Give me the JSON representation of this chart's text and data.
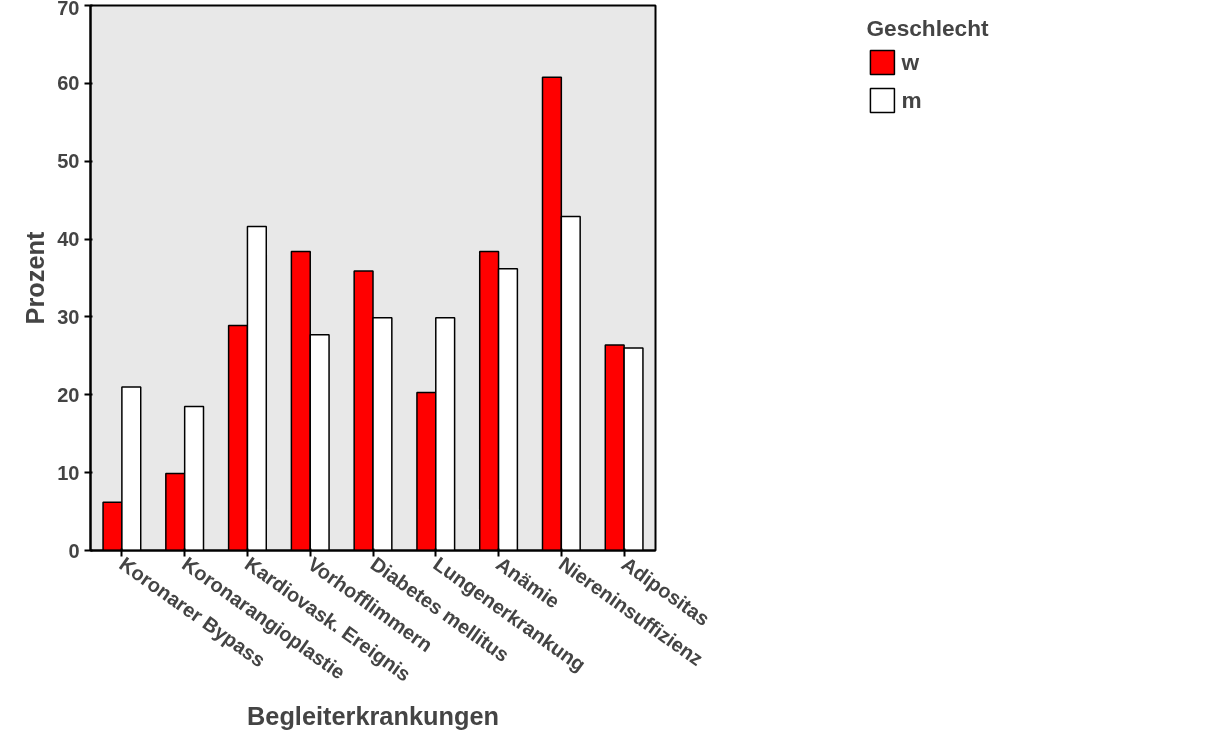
{
  "chart_data": {
    "type": "bar",
    "xlabel": "Begleiterkrankungen",
    "ylabel": "Prozent",
    "legend_title": "Geschlecht",
    "categories": [
      "Koronarer Bypass",
      "Koronarangioplastie",
      "Kardiovask. Ereignis",
      "Vorhofflimmern",
      "Diabetes mellitus",
      "Lungenerkrankung",
      "Anämie",
      "Niereninsuffizienz",
      "Adipositas"
    ],
    "series": [
      {
        "name": "w",
        "color": "#ff0000",
        "values": [
          6.2,
          9.9,
          28.9,
          38.4,
          35.9,
          20.3,
          38.4,
          60.8,
          26.4
        ]
      },
      {
        "name": "m",
        "color": "#ffffff",
        "values": [
          21.0,
          18.5,
          41.6,
          27.7,
          29.9,
          29.9,
          36.2,
          42.9,
          26.0
        ]
      }
    ],
    "ylim": [
      0,
      70
    ],
    "yticks": [
      0,
      10,
      20,
      30,
      40,
      50,
      60,
      70
    ],
    "grid": false,
    "legend": "top right"
  }
}
